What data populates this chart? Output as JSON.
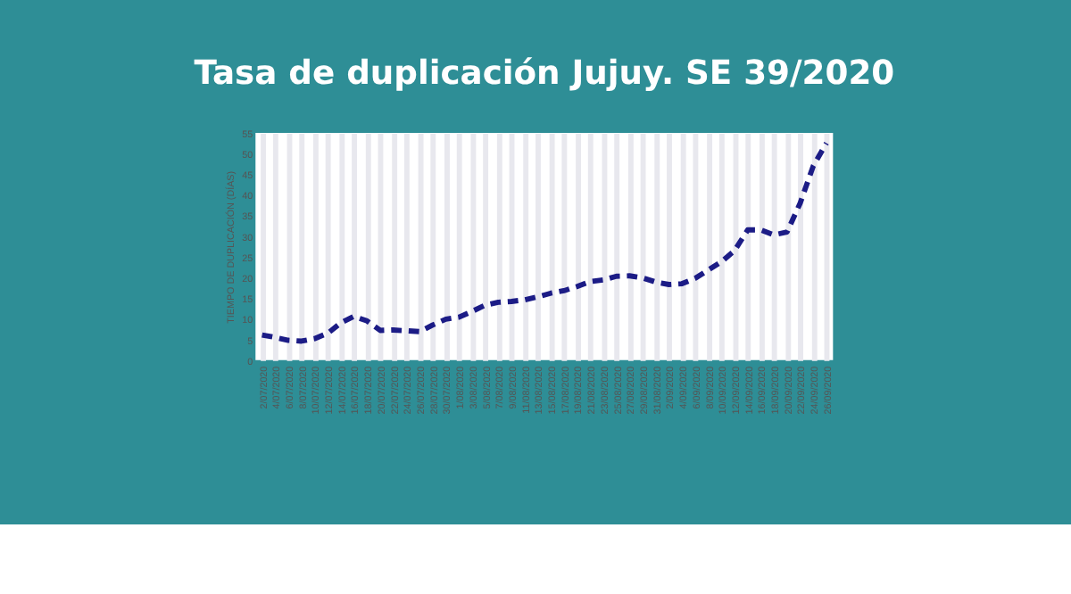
{
  "chart_data": {
    "type": "line",
    "title": "Tasa de duplicación Jujuy. SE 39/2020",
    "ylabel": "TIEMPO DE DUPLICACIÓN (DÍAS)",
    "categories": [
      "2/07/2020",
      "4/07/2020",
      "6/07/2020",
      "8/07/2020",
      "10/07/2020",
      "12/07/2020",
      "14/07/2020",
      "16/07/2020",
      "18/07/2020",
      "20/07/2020",
      "22/07/2020",
      "24/07/2020",
      "26/07/2020",
      "28/07/2020",
      "30/07/2020",
      "1/08/2020",
      "3/08/2020",
      "5/08/2020",
      "7/08/2020",
      "9/08/2020",
      "11/08/2020",
      "13/08/2020",
      "15/08/2020",
      "17/08/2020",
      "19/08/2020",
      "21/08/2020",
      "23/08/2020",
      "25/08/2020",
      "27/08/2020",
      "29/08/2020",
      "31/08/2020",
      "2/09/2020",
      "4/09/2020",
      "6/09/2020",
      "8/09/2020",
      "10/09/2020",
      "12/09/2020",
      "14/09/2020",
      "16/09/2020",
      "18/09/2020",
      "20/09/2020",
      "22/09/2020",
      "24/09/2020",
      "26/09/2020"
    ],
    "series": [
      {
        "color": "#1c1c86",
        "values": [
          6.1,
          5.5,
          4.8,
          4.6,
          5.2,
          6.5,
          9,
          10.6,
          9.5,
          7.2,
          7.3,
          7.1,
          6.9,
          8.5,
          9.9,
          10.4,
          11.8,
          13.3,
          14,
          14.2,
          14.6,
          15.3,
          16.2,
          16.8,
          17.8,
          19,
          19.4,
          20.3,
          20.4,
          19.9,
          18.9,
          18.3,
          18.5,
          19.8,
          21.8,
          23.8,
          26.5,
          31.5,
          31.5,
          30.3,
          31,
          38,
          47,
          52.5
        ]
      }
    ],
    "ylim": [
      0,
      55
    ],
    "yticks": [
      0,
      5,
      10,
      15,
      20,
      25,
      30,
      35,
      40,
      45,
      50,
      55
    ],
    "grid": "x",
    "line_style": "dashed",
    "marker": "none",
    "legend": false
  }
}
